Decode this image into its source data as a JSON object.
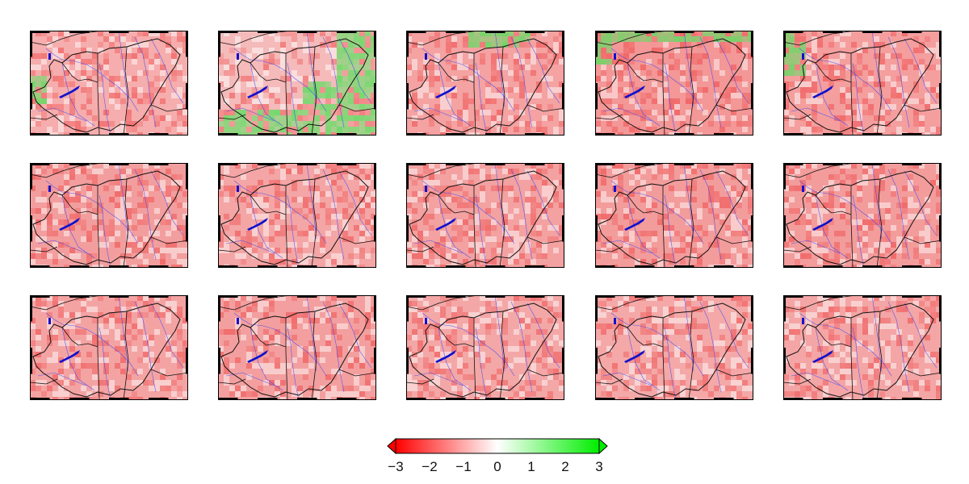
{
  "figure": {
    "rows": 3,
    "cols": 5,
    "colors": {
      "negative": "#ff1a1a",
      "neutral": "#ffffff",
      "positive": "#22dd22",
      "river": "#3344ff",
      "lake": "#1111cc",
      "border": "#111111"
    },
    "panels": [
      {
        "row": 0,
        "col": 0,
        "mean": -0.9,
        "green": 0.12,
        "base": "#f7b3b3"
      },
      {
        "row": 0,
        "col": 1,
        "mean": -0.3,
        "green": 0.55,
        "base": "#f6c2c2"
      },
      {
        "row": 0,
        "col": 2,
        "mean": -1.0,
        "green": 0.18,
        "base": "#f5a7a7"
      },
      {
        "row": 0,
        "col": 3,
        "mean": -1.3,
        "green": 0.1,
        "base": "#f49a9a"
      },
      {
        "row": 0,
        "col": 4,
        "mean": -1.2,
        "green": 0.08,
        "base": "#f5a2a2"
      },
      {
        "row": 1,
        "col": 0,
        "mean": -1.2,
        "green": 0.0,
        "base": "#f4a2a2"
      },
      {
        "row": 1,
        "col": 1,
        "mean": -1.1,
        "green": 0.0,
        "base": "#f5aaaa"
      },
      {
        "row": 1,
        "col": 2,
        "mean": -1.1,
        "green": 0.0,
        "base": "#f4a5a5"
      },
      {
        "row": 1,
        "col": 3,
        "mean": -1.2,
        "green": 0.0,
        "base": "#f4a0a0"
      },
      {
        "row": 1,
        "col": 4,
        "mean": -1.2,
        "green": 0.0,
        "base": "#f4a0a0"
      },
      {
        "row": 2,
        "col": 0,
        "mean": -1.1,
        "green": 0.0,
        "base": "#f5a8a8"
      },
      {
        "row": 2,
        "col": 1,
        "mean": -1.1,
        "green": 0.0,
        "base": "#f4a3a3"
      },
      {
        "row": 2,
        "col": 2,
        "mean": -1.0,
        "green": 0.0,
        "base": "#f5acac"
      },
      {
        "row": 2,
        "col": 3,
        "mean": -1.0,
        "green": 0.0,
        "base": "#f5adad"
      },
      {
        "row": 2,
        "col": 4,
        "mean": -1.0,
        "green": 0.0,
        "base": "#f5aaaa"
      }
    ]
  },
  "colorbar": {
    "min": -3,
    "max": 3,
    "colors": [
      "#ff0000",
      "#ffffff",
      "#00ee00"
    ],
    "tick_labels": [
      "−3",
      "−2",
      "−1",
      "0",
      "1",
      "2",
      "3"
    ]
  }
}
